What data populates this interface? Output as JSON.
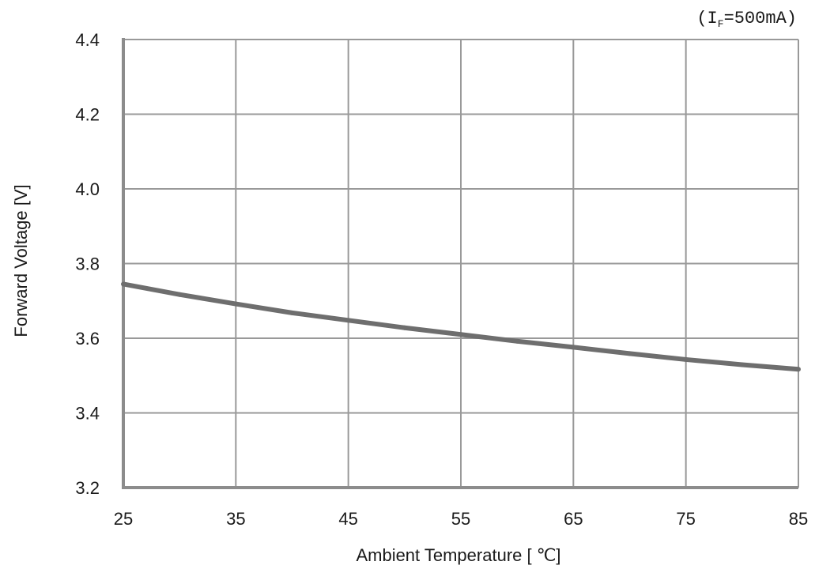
{
  "chart_data": {
    "type": "line",
    "title": "",
    "condition": {
      "open": "(I",
      "subscript": "F",
      "rest": "=500mA)"
    },
    "xlabel": "Ambient Temperature [ ℃]",
    "ylabel": "Forward Voltage [V]",
    "xlim": [
      25,
      85
    ],
    "ylim": [
      3.2,
      4.4
    ],
    "x_ticks": [
      "25",
      "35",
      "45",
      "55",
      "65",
      "75",
      "85"
    ],
    "y_ticks": [
      "3.2",
      "3.4",
      "3.6",
      "3.8",
      "4.0",
      "4.2",
      "4.4"
    ],
    "grid": true,
    "series": [
      {
        "color": "#6e6e6e",
        "x": [
          25,
          30,
          35,
          40,
          45,
          50,
          55,
          60,
          65,
          70,
          75,
          80,
          85
        ],
        "y": [
          3.745,
          3.717,
          3.692,
          3.668,
          3.648,
          3.628,
          3.61,
          3.592,
          3.576,
          3.559,
          3.543,
          3.529,
          3.517
        ]
      }
    ],
    "colors": {
      "grid": "#999999",
      "axis": "#8c8c8c",
      "line": "#6e6e6e"
    }
  }
}
